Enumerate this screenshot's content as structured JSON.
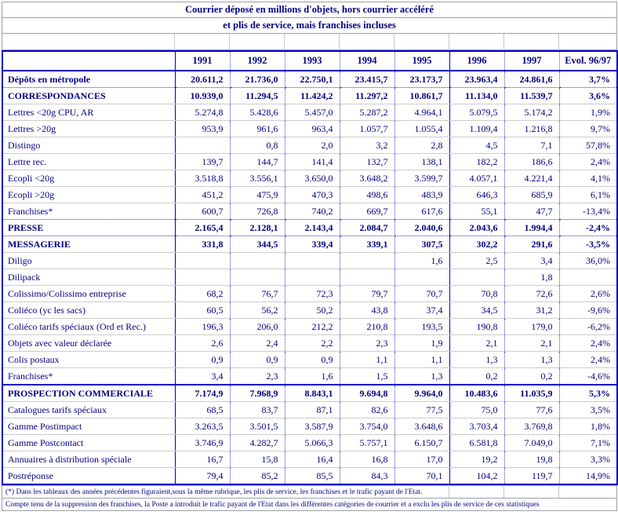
{
  "title": {
    "line1": "Courrier déposé en millions d'objets, hors courrier accéléré",
    "line2": "et plis de service, mais franchises incluses"
  },
  "table": {
    "headers": [
      "1991",
      "1992",
      "1993",
      "1994",
      "1995",
      "1996",
      "1997",
      "Evol. 96/97"
    ],
    "rows": [
      {
        "label": "Dépôts en métropole",
        "cls": "bold dot-b",
        "values": [
          "20.611,2",
          "21.736,0",
          "22.750,1",
          "23.415,7",
          "23.173,7",
          "23.963,4",
          "24.861,6",
          "3,7%"
        ]
      },
      {
        "label": "CORRESPONDANCES",
        "cls": "bold",
        "values": [
          "10.939,0",
          "11.294,5",
          "11.424,2",
          "11.297,2",
          "10.861,7",
          "11.134,0",
          "11.539,7",
          "3,6%"
        ]
      },
      {
        "label": "Lettres <20g CPU, AR",
        "cls": "",
        "values": [
          "5.274,8",
          "5.428,6",
          "5.457,0",
          "5.287,2",
          "4.964,1",
          "5.079,5",
          "5.174,2",
          "1,9%"
        ]
      },
      {
        "label": "Lettres >20g",
        "cls": "",
        "values": [
          "953,9",
          "961,6",
          "963,4",
          "1.057,7",
          "1.055,4",
          "1.109,4",
          "1.216,8",
          "9,7%"
        ]
      },
      {
        "label": "Distingo",
        "cls": "",
        "values": [
          "",
          "0,8",
          "2,0",
          "3,2",
          "2,8",
          "4,5",
          "7,1",
          "57,8%"
        ]
      },
      {
        "label": "Lettre rec.",
        "cls": "",
        "values": [
          "139,7",
          "144,7",
          "141,4",
          "132,7",
          "138,1",
          "182,2",
          "186,6",
          "2,4%"
        ]
      },
      {
        "label": "Ecopli <20g",
        "cls": "",
        "values": [
          "3.518,8",
          "3.556,1",
          "3.650,0",
          "3.648,2",
          "3.599,7",
          "4.057,1",
          "4.221,4",
          "4,1%"
        ]
      },
      {
        "label": "Ecopli >20g",
        "cls": "",
        "values": [
          "451,2",
          "475,9",
          "470,3",
          "498,6",
          "483,9",
          "646,3",
          "685,9",
          "6,1%"
        ]
      },
      {
        "label": "Franchises*",
        "cls": "dot-b",
        "values": [
          "600,7",
          "726,8",
          "740,2",
          "669,7",
          "617,6",
          "55,1",
          "47,7",
          "-13,4%"
        ]
      },
      {
        "label": "PRESSE",
        "cls": "bold dot-b",
        "values": [
          "2.165,4",
          "2.128,1",
          "2.143,4",
          "2.084,7",
          "2.040,6",
          "2.043,6",
          "1.994,4",
          "-2,4%"
        ]
      },
      {
        "label": "MESSAGERIE",
        "cls": "bold",
        "values": [
          "331,8",
          "344,5",
          "339,4",
          "339,1",
          "307,5",
          "302,2",
          "291,6",
          "-3,5%"
        ]
      },
      {
        "label": "Diligo",
        "cls": "",
        "values": [
          "",
          "",
          "",
          "",
          "1,6",
          "2,5",
          "3,4",
          "36,0%"
        ]
      },
      {
        "label": "Dilipack",
        "cls": "",
        "values": [
          "",
          "",
          "",
          "",
          "",
          "",
          "1,8",
          ""
        ]
      },
      {
        "label": "Colissimo/Colissimo entreprise",
        "cls": "",
        "values": [
          "68,2",
          "76,7",
          "72,3",
          "79,7",
          "70,7",
          "70,8",
          "72,6",
          "2,6%"
        ]
      },
      {
        "label": "Coliéco (yc les sacs)",
        "cls": "",
        "values": [
          "60,5",
          "56,2",
          "50,2",
          "43,8",
          "37,4",
          "34,5",
          "31,2",
          "-9,6%"
        ]
      },
      {
        "label": "Coliéco tarifs spéciaux (Ord et Rec.)",
        "cls": "",
        "values": [
          "196,3",
          "206,0",
          "212,2",
          "210,8",
          "193,5",
          "190,8",
          "179,0",
          "-6,2%"
        ]
      },
      {
        "label": "Objets avec valeur déclarée",
        "cls": "",
        "values": [
          "2,6",
          "2,4",
          "2,2",
          "2,3",
          "1,9",
          "2,1",
          "2,1",
          "2,4%"
        ]
      },
      {
        "label": "Colis postaux",
        "cls": "",
        "values": [
          "0,9",
          "0,9",
          "0,9",
          "1,1",
          "1,1",
          "1,3",
          "1,3",
          "2,4%"
        ]
      },
      {
        "label": "Franchises*",
        "cls": "blue-b",
        "values": [
          "3,4",
          "2,3",
          "1,6",
          "1,5",
          "1,3",
          "0,2",
          "0,2",
          "-4,6%"
        ]
      },
      {
        "label": "PROSPECTION COMMERCIALE",
        "cls": "bold",
        "values": [
          "7.174,9",
          "7.968,9",
          "8.843,1",
          "9.694,8",
          "9.964,0",
          "10.483,6",
          "11.035,9",
          "5,3%"
        ]
      },
      {
        "label": "Catalogues tarifs spéciaux",
        "cls": "",
        "values": [
          "68,5",
          "83,7",
          "87,1",
          "82,6",
          "77,5",
          "75,0",
          "77,6",
          "3,5%"
        ]
      },
      {
        "label": "Gamme Postimpact",
        "cls": "",
        "values": [
          "3.263,5",
          "3.501,5",
          "3.587,9",
          "3.754,0",
          "3.648,6",
          "3.703,4",
          "3.769,8",
          "1,8%"
        ]
      },
      {
        "label": "Gamme Postcontact",
        "cls": "",
        "values": [
          "3.746,9",
          "4.282,7",
          "5.066,3",
          "5.757,1",
          "6.150,7",
          "6.581,8",
          "7.049,0",
          "7,1%"
        ]
      },
      {
        "label": "Annuaires à distribution spéciale",
        "cls": "",
        "values": [
          "16,7",
          "15,8",
          "16,4",
          "16,8",
          "17,0",
          "19,2",
          "19,8",
          "3,3%"
        ]
      },
      {
        "label": "Postréponse",
        "cls": "",
        "values": [
          "79,4",
          "85,2",
          "85,5",
          "84,3",
          "70,1",
          "104,2",
          "119,7",
          "14,9%"
        ]
      }
    ]
  },
  "footnotes": [
    "(*) Dans les tableaux des années précédentes figuraient,sous la même rubrique, les plis de service, les franchises et le trafic payant de l'Etat.",
    "Compte tenu de la suppression des franchises, la Poste a introduit le trafic payant de l'Etat dans les différentes catégories de courrier et a exclu les plis de service de ces statistiques"
  ],
  "colors": {
    "text_navy": "#000082",
    "border_blue": "#0000c8",
    "row_rule_gray": "#cccccc",
    "outer_gray": "#9aa0a6"
  }
}
